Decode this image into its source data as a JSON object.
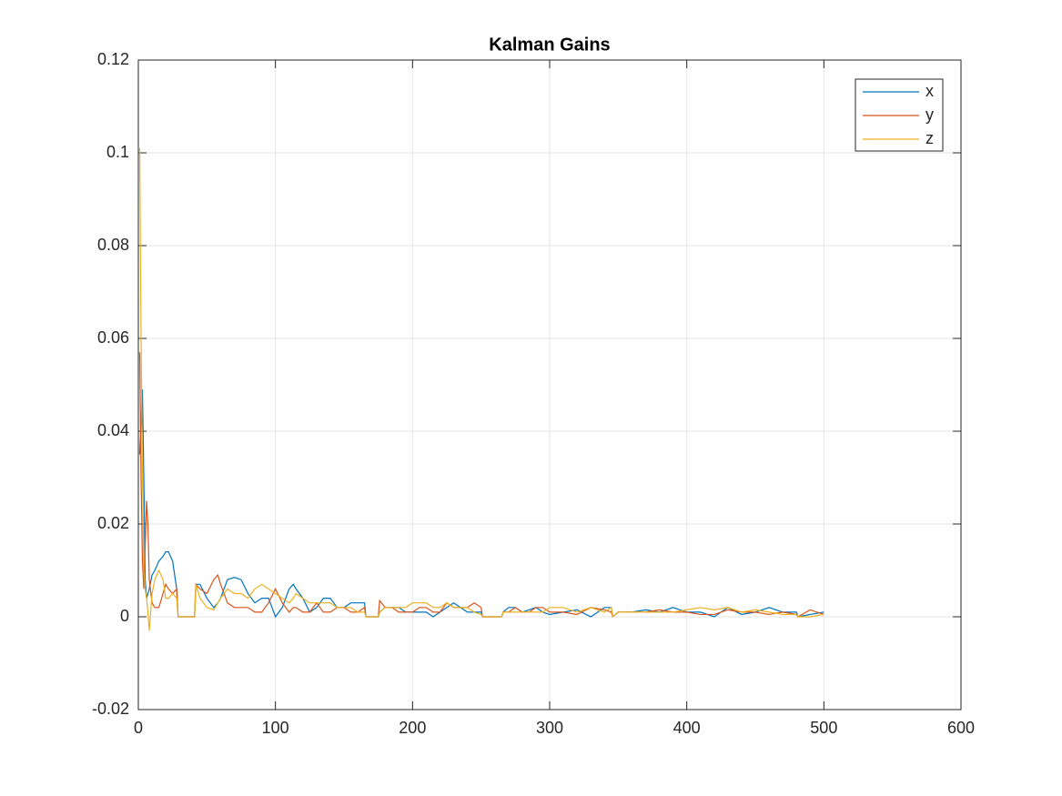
{
  "chart_data": {
    "type": "line",
    "title": "Kalman Gains",
    "x": [
      1,
      2,
      3,
      4,
      5,
      6,
      7,
      8,
      10,
      12,
      15,
      18,
      20,
      22,
      25,
      28,
      29,
      35,
      40,
      41,
      42,
      45,
      50,
      55,
      58,
      60,
      65,
      70,
      75,
      80,
      85,
      90,
      95,
      100,
      105,
      110,
      113,
      115,
      120,
      125,
      130,
      135,
      140,
      145,
      150,
      155,
      160,
      165,
      166,
      170,
      175,
      176,
      180,
      185,
      190,
      195,
      200,
      205,
      210,
      215,
      220,
      225,
      230,
      235,
      240,
      245,
      250,
      251,
      260,
      265,
      266,
      270,
      275,
      280,
      285,
      290,
      295,
      300,
      310,
      320,
      330,
      340,
      345,
      346,
      350,
      360,
      370,
      380,
      390,
      400,
      410,
      420,
      430,
      440,
      450,
      460,
      470,
      480,
      481,
      490,
      500
    ],
    "series": [
      {
        "name": "x",
        "color": "#0072bd",
        "values": [
          0.035,
          0.042,
          0.049,
          0.03,
          0.008,
          0.004,
          0.005,
          0.006,
          0.009,
          0.01,
          0.012,
          0.013,
          0.014,
          0.014,
          0.012,
          0.006,
          0,
          0,
          0,
          0,
          0.007,
          0.007,
          0.004,
          0.002,
          0.003,
          0.004,
          0.008,
          0.0085,
          0.008,
          0.005,
          0.003,
          0.004,
          0.004,
          0,
          0.002,
          0.006,
          0.007,
          0.006,
          0.004,
          0.001,
          0.002,
          0.004,
          0.004,
          0.002,
          0.002,
          0.003,
          0.003,
          0.003,
          0,
          0,
          0,
          0.001,
          0.002,
          0.002,
          0.002,
          0.001,
          0.001,
          0.001,
          0.001,
          0,
          0.001,
          0.002,
          0.003,
          0.002,
          0.001,
          0.001,
          0.001,
          0,
          0,
          0,
          0.001,
          0.002,
          0.002,
          0.001,
          0.0015,
          0.002,
          0.001,
          0.0005,
          0.001,
          0.0015,
          0,
          0.002,
          0.002,
          0,
          0.001,
          0.001,
          0.0015,
          0.001,
          0.002,
          0.001,
          0.001,
          0,
          0.002,
          0.0005,
          0.001,
          0.002,
          0.001,
          0.001,
          0,
          0.0005,
          0.001
        ]
      },
      {
        "name": "y",
        "color": "#d95319",
        "values": [
          0.057,
          0.03,
          0.012,
          0.006,
          0.015,
          0.025,
          0.02,
          0.008,
          0.003,
          0.002,
          0.002,
          0.005,
          0.007,
          0.006,
          0.005,
          0.006,
          0,
          0,
          0,
          0,
          0.007,
          0.006,
          0.005,
          0.008,
          0.009,
          0.007,
          0.003,
          0.002,
          0.002,
          0.002,
          0.001,
          0.001,
          0.003,
          0.006,
          0.003,
          0.001,
          0.002,
          0.002,
          0.001,
          0.001,
          0.003,
          0.001,
          0.001,
          0.002,
          0.002,
          0.001,
          0.001,
          0.002,
          0,
          0,
          0,
          0.0035,
          0.002,
          0.002,
          0.001,
          0.001,
          0.001,
          0.002,
          0.002,
          0.001,
          0.001,
          0.003,
          0.002,
          0.002,
          0.002,
          0.003,
          0.002,
          0,
          0,
          0,
          0.001,
          0.001,
          0.002,
          0.001,
          0.001,
          0.002,
          0.002,
          0.001,
          0.001,
          0.0005,
          0.002,
          0.0015,
          0.001,
          0,
          0.001,
          0.001,
          0.001,
          0.0015,
          0.001,
          0.001,
          0.0005,
          0.0005,
          0.0015,
          0.001,
          0.001,
          0.0005,
          0.001,
          0.0005,
          0,
          0.0015,
          0.0005
        ]
      },
      {
        "name": "z",
        "color": "#edb120",
        "values": [
          0.101,
          0.06,
          0.03,
          0.01,
          0.006,
          0.004,
          0.001,
          -0.003,
          0.005,
          0.008,
          0.01,
          0.008,
          0.004,
          0.004,
          0.005,
          0.004,
          0,
          0,
          0,
          0,
          0.007,
          0.004,
          0.002,
          0.0015,
          0.003,
          0.004,
          0.006,
          0.005,
          0.005,
          0.004,
          0.006,
          0.007,
          0.006,
          0.005,
          0.004,
          0.003,
          0.004,
          0.005,
          0.004,
          0.003,
          0.003,
          0.003,
          0.003,
          0.002,
          0.002,
          0.002,
          0.001,
          0.001,
          0,
          0,
          0,
          0.001,
          0.002,
          0.002,
          0.002,
          0.002,
          0.003,
          0.003,
          0.003,
          0.002,
          0.002,
          0.003,
          0.002,
          0.002,
          0.002,
          0.001,
          0.0005,
          0,
          0,
          0,
          0.001,
          0.001,
          0.001,
          0.001,
          0.001,
          0.001,
          0.001,
          0.002,
          0.002,
          0.001,
          0.002,
          0.001,
          0.002,
          0,
          0.001,
          0.001,
          0.001,
          0.001,
          0.001,
          0.0015,
          0.002,
          0.0015,
          0.002,
          0.001,
          0.0015,
          0.001,
          0.0005,
          0.0005,
          0,
          0,
          0.0005
        ]
      }
    ],
    "xlim": [
      0,
      600
    ],
    "xticks": [
      0,
      100,
      200,
      300,
      400,
      500,
      600
    ],
    "ylim": [
      -0.02,
      0.12
    ],
    "yticks": [
      -0.02,
      0,
      0.02,
      0.04,
      0.06,
      0.08,
      0.1,
      0.12
    ],
    "grid": true,
    "legend": "top-right"
  }
}
